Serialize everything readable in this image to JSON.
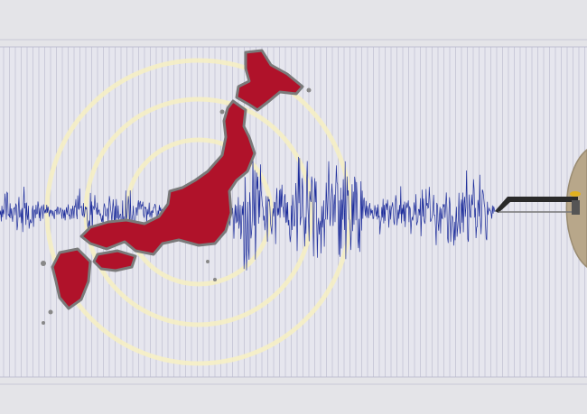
{
  "illustration": {
    "subject": "seismograph-japan-earthquake",
    "colors": {
      "background": "#e4e4e8",
      "paper": "#e6e6ee",
      "grid_line": "#b8b8cc",
      "wave": "#1f2f9c",
      "japan_fill": "#b0122a",
      "japan_outline": "#7a7a7a",
      "ripple": "#f6efc4",
      "drum": "#b8a78a",
      "stylus": "#2a2a2a",
      "stylus_tip": "#e0b020"
    }
  }
}
